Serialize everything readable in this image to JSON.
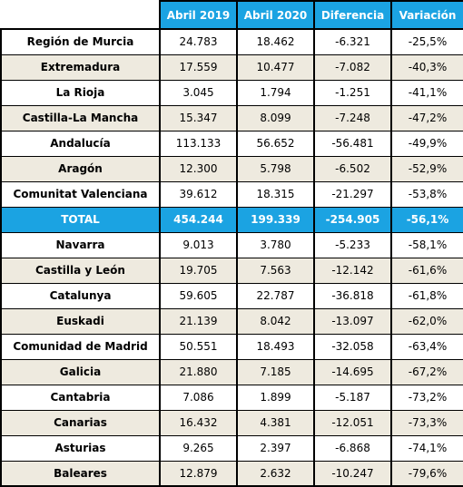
{
  "table": {
    "headers": [
      "",
      "Abril 2019",
      "Abril 2020",
      "Diferencia",
      "Variación"
    ],
    "rows": [
      {
        "region": "Región de Murcia",
        "abril_2019": "24.783",
        "abril_2020": "18.462",
        "diferencia": "-6.321",
        "variacion": "-25,5%"
      },
      {
        "region": "Extremadura",
        "abril_2019": "17.559",
        "abril_2020": "10.477",
        "diferencia": "-7.082",
        "variacion": "-40,3%"
      },
      {
        "region": "La Rioja",
        "abril_2019": "3.045",
        "abril_2020": "1.794",
        "diferencia": "-1.251",
        "variacion": "-41,1%"
      },
      {
        "region": "Castilla-La Mancha",
        "abril_2019": "15.347",
        "abril_2020": "8.099",
        "diferencia": "-7.248",
        "variacion": "-47,2%"
      },
      {
        "region": "Andalucía",
        "abril_2019": "113.133",
        "abril_2020": "56.652",
        "diferencia": "-56.481",
        "variacion": "-49,9%"
      },
      {
        "region": "Aragón",
        "abril_2019": "12.300",
        "abril_2020": "5.798",
        "diferencia": "-6.502",
        "variacion": "-52,9%"
      },
      {
        "region": "Comunitat Valenciana",
        "abril_2019": "39.612",
        "abril_2020": "18.315",
        "diferencia": "-21.297",
        "variacion": "-53,8%"
      },
      {
        "region": "TOTAL",
        "abril_2019": "454.244",
        "abril_2020": "199.339",
        "diferencia": "-254.905",
        "variacion": "-56,1%",
        "total": true
      },
      {
        "region": "Navarra",
        "abril_2019": "9.013",
        "abril_2020": "3.780",
        "diferencia": "-5.233",
        "variacion": "-58,1%"
      },
      {
        "region": "Castilla y León",
        "abril_2019": "19.705",
        "abril_2020": "7.563",
        "diferencia": "-12.142",
        "variacion": "-61,6%"
      },
      {
        "region": "Catalunya",
        "abril_2019": "59.605",
        "abril_2020": "22.787",
        "diferencia": "-36.818",
        "variacion": "-61,8%"
      },
      {
        "region": "Euskadi",
        "abril_2019": "21.139",
        "abril_2020": "8.042",
        "diferencia": "-13.097",
        "variacion": "-62,0%"
      },
      {
        "region": "Comunidad de Madrid",
        "abril_2019": "50.551",
        "abril_2020": "18.493",
        "diferencia": "-32.058",
        "variacion": "-63,4%"
      },
      {
        "region": "Galicia",
        "abril_2019": "21.880",
        "abril_2020": "7.185",
        "diferencia": "-14.695",
        "variacion": "-67,2%"
      },
      {
        "region": "Cantabria",
        "abril_2019": "7.086",
        "abril_2020": "1.899",
        "diferencia": "-5.187",
        "variacion": "-73,2%"
      },
      {
        "region": "Canarias",
        "abril_2019": "16.432",
        "abril_2020": "4.381",
        "diferencia": "-12.051",
        "variacion": "-73,3%"
      },
      {
        "region": "Asturias",
        "abril_2019": "9.265",
        "abril_2020": "2.397",
        "diferencia": "-6.868",
        "variacion": "-74,1%"
      },
      {
        "region": "Baleares",
        "abril_2019": "12.879",
        "abril_2020": "2.632",
        "diferencia": "-10.247",
        "variacion": "-79,6%"
      }
    ]
  },
  "colors": {
    "header_bg": "#1ba3e2",
    "alt_row_bg": "#eeeadf",
    "border": "#000000"
  }
}
